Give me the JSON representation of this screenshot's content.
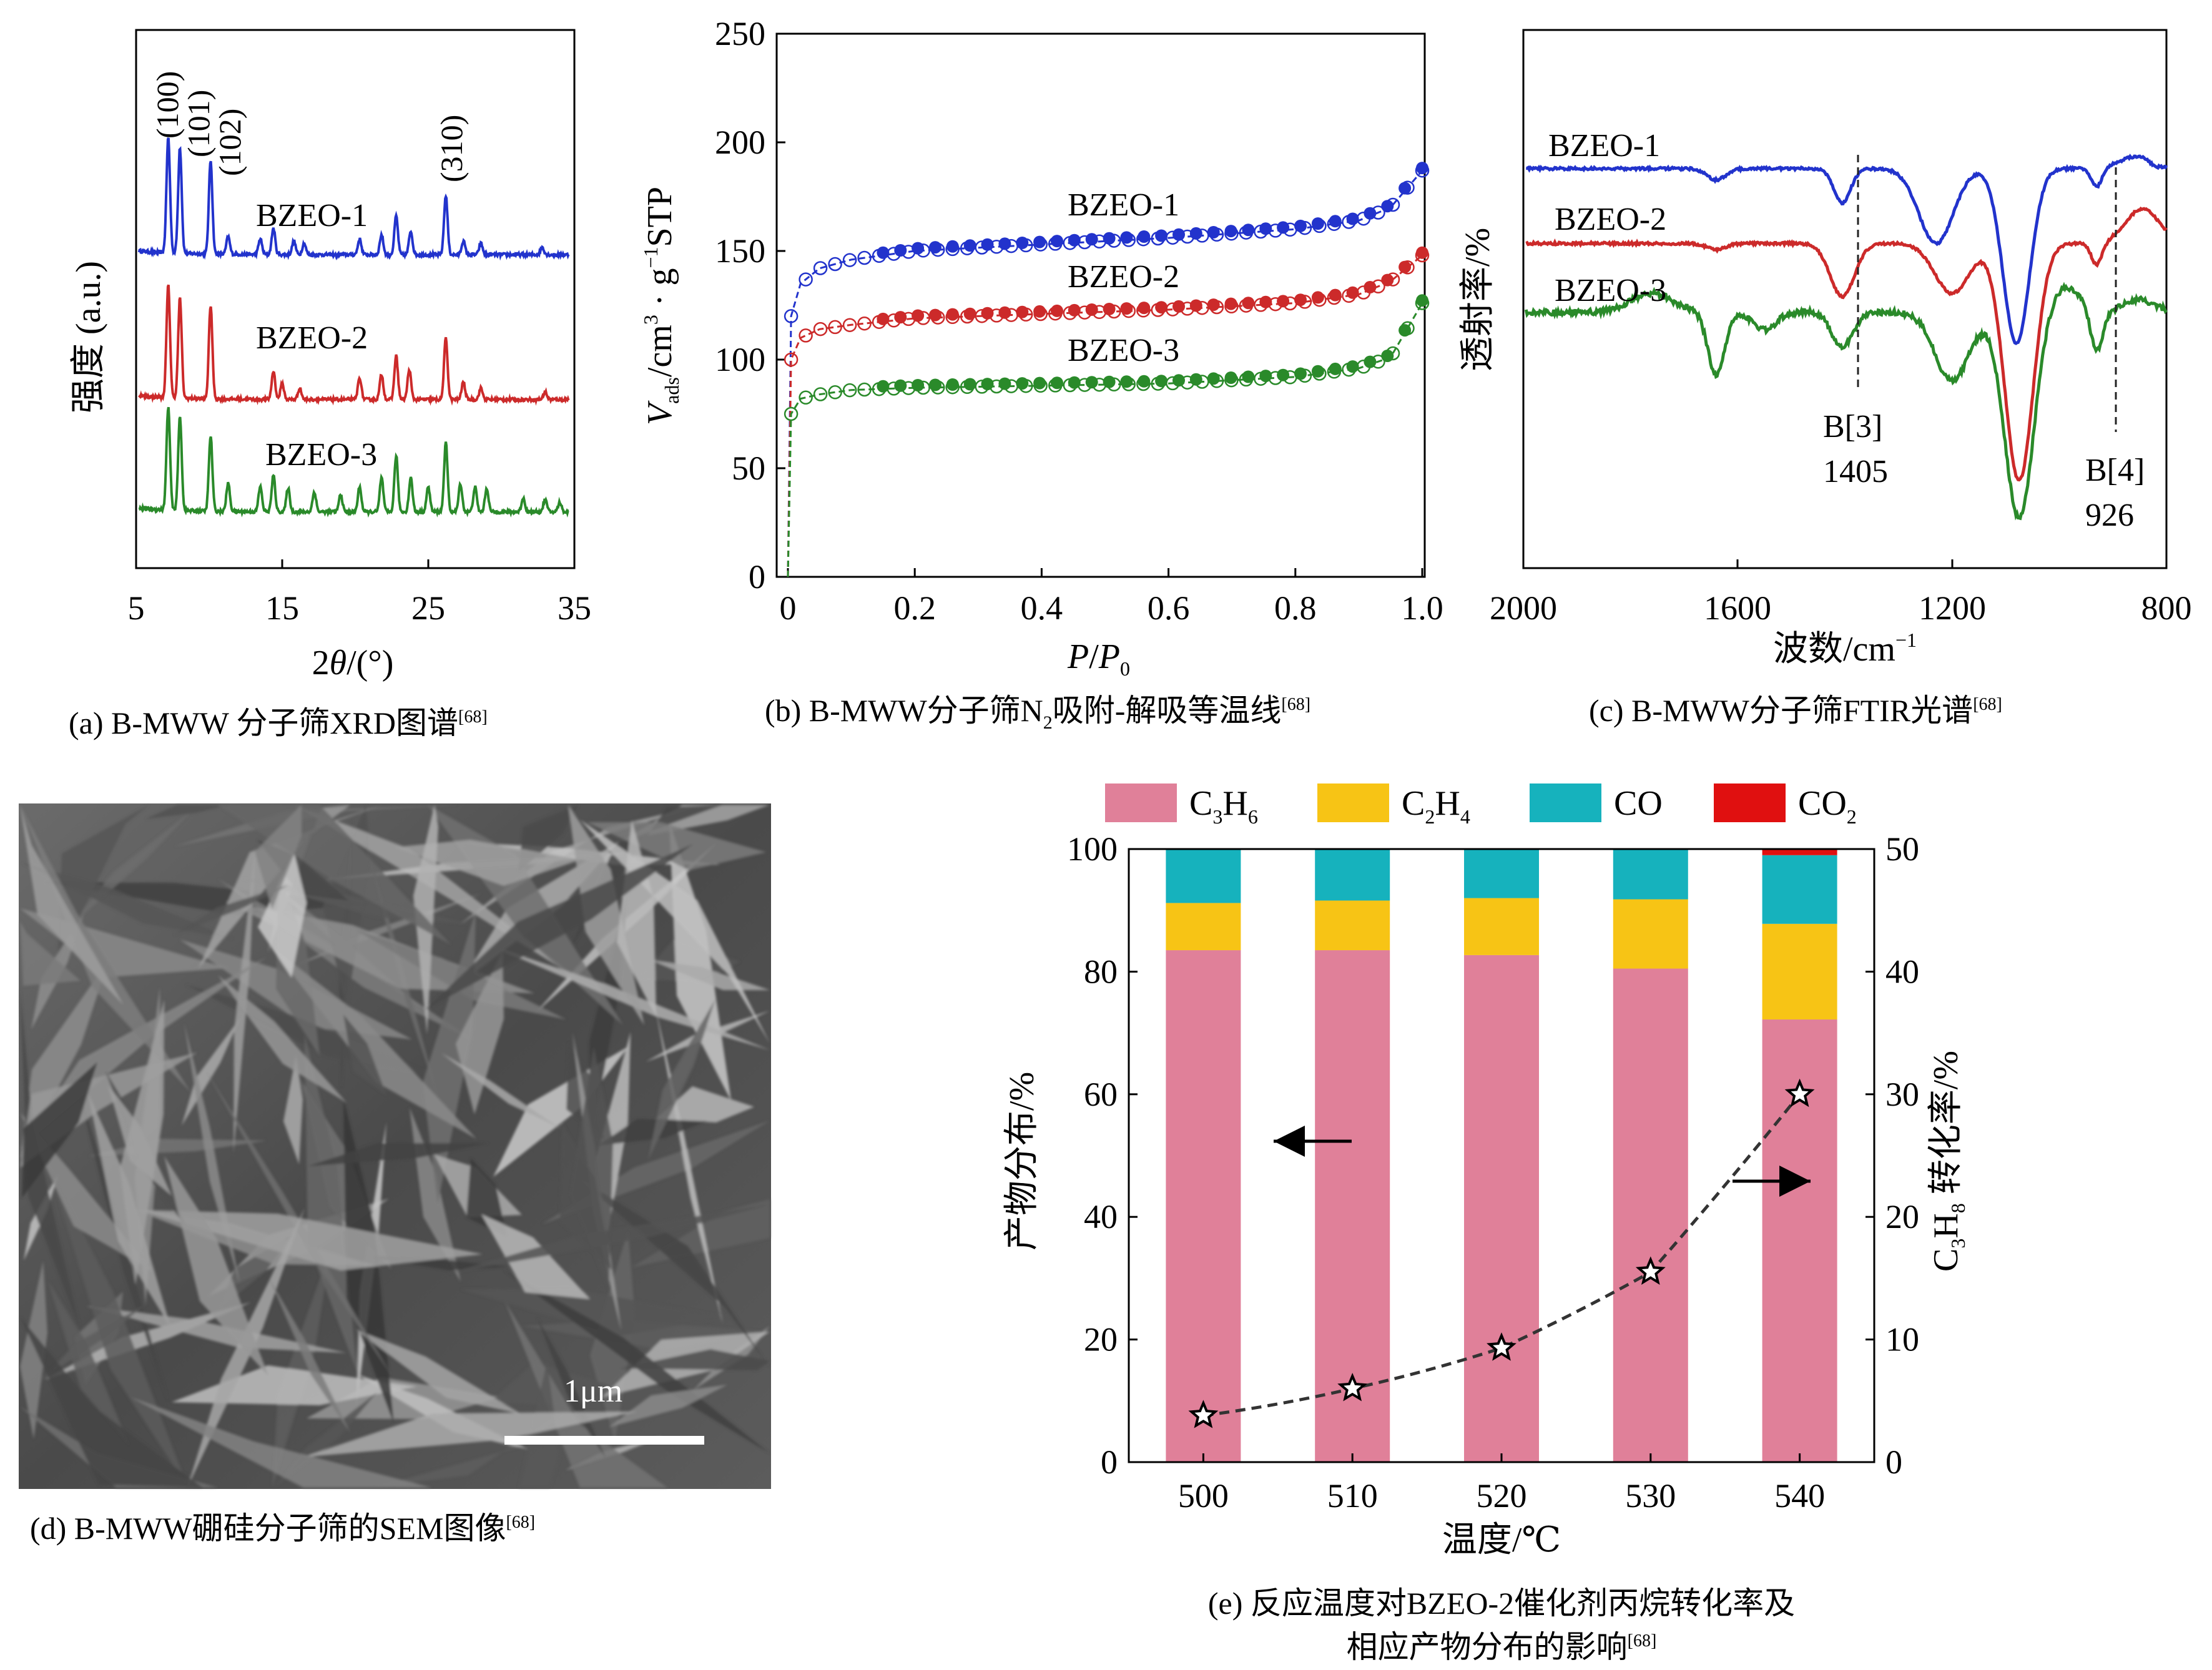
{
  "colors": {
    "blue": "#2233cc",
    "red": "#cc2a2a",
    "green": "#2a8a2a",
    "pink": "#e08099",
    "yellow": "#f7c415",
    "teal": "#16b2bd",
    "co2": "#e01010"
  },
  "panel_a": {
    "caption": "(a) B-MWW 分子筛XRD图谱",
    "caption_ref": "[68]",
    "ylabel": "强度 (a.u.)",
    "xlabel_pre": "2",
    "xlabel_theta": "θ",
    "xlabel_post": "/(°)",
    "xticks": [
      "5",
      "15",
      "25",
      "35"
    ],
    "peaks": [
      "(100)",
      "(101)",
      "(102)",
      "(310)"
    ],
    "series": [
      "BZEO-1",
      "BZEO-2",
      "BZEO-3"
    ]
  },
  "panel_b": {
    "caption_pre": "(b) B-MWW分子筛N",
    "caption_sub": "2",
    "caption_post": "吸附-解吸等温线",
    "caption_ref": "[68]",
    "ylabel_v": "V",
    "ylabel_sub": "ads",
    "ylabel_rest": "/cm",
    "ylabel_sup1": "3",
    "ylabel_dot": " · g",
    "ylabel_sup2": "−1",
    "ylabel_end": "STP",
    "xlabel_p": "P",
    "xlabel_slash": "/",
    "xlabel_p0": "P",
    "xlabel_sub": "0",
    "xticks": [
      "0",
      "0.2",
      "0.4",
      "0.6",
      "0.8",
      "1.0"
    ],
    "yticks": [
      "0",
      "50",
      "100",
      "150",
      "200",
      "250"
    ],
    "series": [
      "BZEO-1",
      "BZEO-2",
      "BZEO-3"
    ]
  },
  "panel_c": {
    "caption": "(c) B-MWW分子筛FTIR光谱",
    "caption_ref": "[68]",
    "ylabel": "透射率/%",
    "xlabel_pre": "波数/cm",
    "xlabel_sup": "−1",
    "xticks": [
      "2000",
      "1600",
      "1200",
      "800"
    ],
    "series": [
      "BZEO-1",
      "BZEO-2",
      "BZEO-3"
    ],
    "mark1_label": "B[3]",
    "mark1_value": "1405",
    "mark2_label": "B[4]",
    "mark2_value": "926"
  },
  "panel_d": {
    "caption": "(d) B-MWW硼硅分子筛的SEM图像",
    "caption_ref": "[68]",
    "scale_label": "1μm"
  },
  "panel_e": {
    "caption_line1": "(e) 反应温度对BZEO-2催化剂丙烷转化率及",
    "caption_line2": "相应产物分布的影响",
    "caption_ref": "[68]",
    "ylabel": "产物分布/%",
    "y2label_pre": "C",
    "y2label_sub1": "3",
    "y2label_mid": "H",
    "y2label_sub2": "8",
    "y2label_post": " 转化率/%",
    "xlabel": "温度/℃",
    "yticks": [
      "0",
      "20",
      "40",
      "60",
      "80",
      "100"
    ],
    "y2ticks": [
      "0",
      "10",
      "20",
      "30",
      "40",
      "50"
    ],
    "legend": [
      {
        "base": "C",
        "sub1": "3",
        "mid": "H",
        "sub2": "6"
      },
      {
        "base": "C",
        "sub1": "2",
        "mid": "H",
        "sub2": "4"
      },
      {
        "base": "CO",
        "sub1": "",
        "mid": "",
        "sub2": ""
      },
      {
        "base": "CO",
        "sub1": "2",
        "mid": "",
        "sub2": ""
      }
    ]
  },
  "chart_data": [
    {
      "panel": "a",
      "type": "line",
      "xlabel": "2θ/(°)",
      "ylabel": "强度 (a.u.)",
      "xlim": [
        5,
        35
      ],
      "series": [
        {
          "name": "BZEO-1"
        },
        {
          "name": "BZEO-2"
        },
        {
          "name": "BZEO-3"
        }
      ],
      "peaks": [
        {
          "label": "(100)",
          "x": 7.2
        },
        {
          "label": "(101)",
          "x": 8.0
        },
        {
          "label": "(102)",
          "x": 10.1
        },
        {
          "label": "(310)",
          "x": 26.2
        }
      ]
    },
    {
      "panel": "b",
      "type": "scatter",
      "xlabel": "P/P0",
      "ylabel": "Vads/cm3·g-1 STP",
      "xlim": [
        0,
        1.0
      ],
      "ylim": [
        0,
        250
      ],
      "series": [
        {
          "name": "BZEO-1",
          "x": [
            0,
            0.005,
            0.02,
            0.05,
            0.1,
            0.2,
            0.4,
            0.6,
            0.8,
            0.9,
            0.95,
            1.0
          ],
          "y": [
            0,
            120,
            135,
            142,
            146,
            150,
            153,
            156,
            160,
            164,
            170,
            187
          ]
        },
        {
          "name": "BZEO-2",
          "x": [
            0,
            0.005,
            0.02,
            0.05,
            0.1,
            0.2,
            0.4,
            0.6,
            0.8,
            0.9,
            0.95,
            1.0
          ],
          "y": [
            0,
            100,
            110,
            114,
            116,
            119,
            121,
            123,
            126,
            130,
            136,
            148
          ]
        },
        {
          "name": "BZEO-3",
          "x": [
            0,
            0.005,
            0.02,
            0.05,
            0.1,
            0.2,
            0.4,
            0.6,
            0.8,
            0.9,
            0.95,
            1.0
          ],
          "y": [
            0,
            75,
            82,
            84,
            86,
            87,
            88,
            89,
            92,
            96,
            101,
            126
          ]
        }
      ]
    },
    {
      "panel": "c",
      "type": "line",
      "xlabel": "波数/cm-1",
      "ylabel": "透射率/%",
      "xlim": [
        2000,
        800
      ],
      "series": [
        {
          "name": "BZEO-1"
        },
        {
          "name": "BZEO-2"
        },
        {
          "name": "BZEO-3"
        }
      ],
      "markers": [
        {
          "label": "B[3]",
          "x": 1405
        },
        {
          "label": "B[4]",
          "x": 926
        }
      ]
    },
    {
      "panel": "e",
      "type": "bar",
      "stacked": true,
      "xlabel": "温度/℃",
      "ylabel": "产物分布/%",
      "ylim": [
        0,
        100
      ],
      "categories": [
        "500",
        "510",
        "520",
        "530",
        "540"
      ],
      "series": [
        {
          "name": "C3H6",
          "values": [
            83.5,
            83.5,
            82.7,
            80.5,
            72.2
          ]
        },
        {
          "name": "C2H4",
          "values": [
            7.7,
            8.1,
            9.3,
            11.3,
            15.6
          ]
        },
        {
          "name": "CO",
          "values": [
            8.8,
            8.4,
            8.0,
            8.2,
            11.2
          ]
        },
        {
          "name": "CO2",
          "values": [
            0,
            0,
            0,
            0,
            1.0
          ]
        }
      ],
      "y2label": "C3H8 转化率/%",
      "y2lim": [
        0,
        50
      ],
      "line_series": {
        "name": "C3H8 转化率",
        "values": [
          3.8,
          6.0,
          9.3,
          15.5,
          30.0
        ]
      }
    }
  ]
}
